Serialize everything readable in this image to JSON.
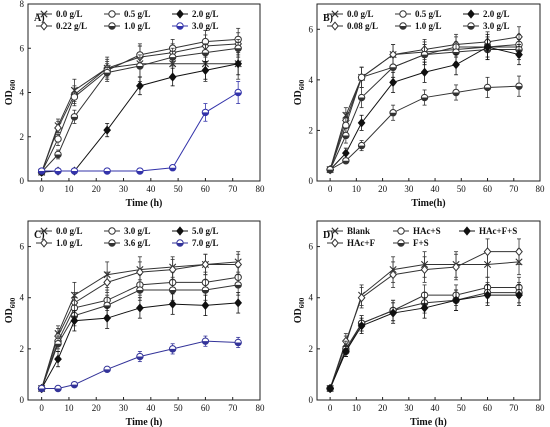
{
  "figure": {
    "background": "#ffffff"
  },
  "chart_data": [
    {
      "type": "line",
      "panel_label": "A)",
      "xlabel": "Time (h)",
      "ylabel": "OD",
      "ylabel_sub": "600",
      "xlim": [
        -5,
        80
      ],
      "ylim": [
        0,
        8
      ],
      "xticks": [
        "0",
        "10",
        "20",
        "30",
        "40",
        "50",
        "60",
        "70",
        "80"
      ],
      "yticks": [
        "0",
        "2",
        "4",
        "6",
        "8"
      ],
      "legend_position": "top-left",
      "series": [
        {
          "name": "0.0  g/L",
          "marker": "x",
          "color": "#333333",
          "x": [
            0,
            6,
            12,
            24,
            36,
            48,
            60,
            72
          ],
          "y": [
            0.4,
            2.5,
            4.1,
            5.1,
            5.3,
            5.3,
            5.3,
            5.3
          ],
          "err": [
            0.1,
            0.3,
            0.5,
            0.5,
            0.8,
            0.7,
            0.8,
            0.7
          ]
        },
        {
          "name": "0.22 g/L",
          "marker": "diamond-open",
          "color": "#333333",
          "x": [
            0,
            6,
            12,
            24,
            36,
            48,
            60,
            72
          ],
          "y": [
            0.4,
            2.4,
            3.9,
            5.1,
            5.6,
            5.8,
            6.1,
            6.2
          ],
          "err": [
            0.1,
            0.3,
            0.4,
            0.4,
            0.5,
            0.4,
            0.5,
            0.5
          ]
        },
        {
          "name": "0.5 g/L",
          "marker": "circle-open",
          "color": "#333333",
          "x": [
            0,
            6,
            12,
            24,
            36,
            48,
            60,
            72
          ],
          "y": [
            0.4,
            1.9,
            3.8,
            5.0,
            5.7,
            6.0,
            6.3,
            6.4
          ],
          "err": [
            0.1,
            0.3,
            0.4,
            0.4,
            0.5,
            0.4,
            0.5,
            0.5
          ]
        },
        {
          "name": "1.0 g/L",
          "marker": "circle-half",
          "color": "#333333",
          "x": [
            0,
            6,
            12,
            24,
            36,
            48,
            60,
            72
          ],
          "y": [
            0.4,
            1.2,
            2.9,
            4.9,
            5.2,
            5.6,
            5.8,
            6.0
          ],
          "err": [
            0.1,
            0.2,
            0.3,
            0.4,
            0.5,
            0.4,
            0.4,
            0.4
          ]
        },
        {
          "name": "2.0 g/L",
          "marker": "diamond-filled",
          "color": "#111111",
          "x": [
            0,
            6,
            12,
            24,
            36,
            48,
            60,
            72
          ],
          "y": [
            0.4,
            0.45,
            0.45,
            2.3,
            4.3,
            4.7,
            5.0,
            5.3
          ],
          "err": [
            0.05,
            0.05,
            0.05,
            0.3,
            0.4,
            0.4,
            0.4,
            0.5
          ]
        },
        {
          "name": "3.0 g/L",
          "marker": "circle-half",
          "color": "#3333aa",
          "x": [
            0,
            6,
            12,
            24,
            36,
            48,
            60,
            72
          ],
          "y": [
            0.45,
            0.45,
            0.45,
            0.45,
            0.45,
            0.6,
            3.1,
            4.0
          ],
          "err": [
            0.05,
            0.05,
            0.05,
            0.05,
            0.05,
            0.05,
            0.4,
            0.5
          ]
        }
      ]
    },
    {
      "type": "line",
      "panel_label": "B)",
      "xlabel": "Time(h)",
      "ylabel": "OD",
      "ylabel_sub": "600",
      "xlim": [
        -5,
        80
      ],
      "ylim": [
        0,
        7
      ],
      "xticks": [
        "0",
        "10",
        "20",
        "30",
        "40",
        "50",
        "60",
        "70",
        "80"
      ],
      "yticks": [
        "0",
        "2",
        "4",
        "6"
      ],
      "legend_position": "top-left",
      "series": [
        {
          "name": "0.0 g/L",
          "marker": "x",
          "color": "#333333",
          "x": [
            0,
            6,
            12,
            24,
            36,
            48,
            60,
            72
          ],
          "y": [
            0.45,
            2.6,
            4.1,
            5.0,
            5.1,
            5.2,
            5.3,
            5.3
          ],
          "err": [
            0.1,
            0.3,
            0.4,
            0.4,
            0.4,
            0.3,
            0.4,
            0.4
          ]
        },
        {
          "name": "0.08 g/L",
          "marker": "diamond-open",
          "color": "#333333",
          "x": [
            0,
            6,
            12,
            24,
            36,
            48,
            60,
            72
          ],
          "y": [
            0.45,
            2.4,
            4.1,
            5.0,
            5.2,
            5.4,
            5.5,
            5.7
          ],
          "err": [
            0.1,
            0.3,
            0.4,
            0.4,
            0.4,
            0.4,
            0.4,
            0.4
          ]
        },
        {
          "name": "0.5 g/L",
          "marker": "circle-open",
          "color": "#333333",
          "x": [
            0,
            6,
            12,
            24,
            36,
            48,
            60,
            72
          ],
          "y": [
            0.45,
            2.2,
            4.1,
            4.5,
            5.0,
            5.3,
            5.3,
            5.4
          ],
          "err": [
            0.1,
            0.3,
            0.4,
            0.4,
            0.4,
            0.4,
            0.4,
            0.4
          ]
        },
        {
          "name": "1.0 g/L",
          "marker": "circle-half",
          "color": "#333333",
          "x": [
            0,
            6,
            12,
            24,
            36,
            48,
            60,
            72
          ],
          "y": [
            0.45,
            1.8,
            3.3,
            4.5,
            5.0,
            5.1,
            5.2,
            5.2
          ],
          "err": [
            0.1,
            0.3,
            0.4,
            0.4,
            0.4,
            0.4,
            0.4,
            0.4
          ]
        },
        {
          "name": "2.0 g/L",
          "marker": "diamond-filled",
          "color": "#111111",
          "x": [
            0,
            6,
            12,
            24,
            36,
            48,
            60,
            72
          ],
          "y": [
            0.45,
            1.1,
            2.3,
            3.9,
            4.3,
            4.6,
            5.3,
            5.0
          ],
          "err": [
            0.1,
            0.2,
            0.3,
            0.4,
            0.4,
            0.4,
            0.5,
            0.4
          ]
        },
        {
          "name": "3.0 g/L",
          "marker": "circle-half",
          "color": "#333333",
          "x": [
            0,
            6,
            12,
            24,
            36,
            48,
            60,
            72
          ],
          "y": [
            0.45,
            0.8,
            1.4,
            2.7,
            3.3,
            3.5,
            3.7,
            3.75
          ],
          "err": [
            0.1,
            0.1,
            0.2,
            0.3,
            0.3,
            0.3,
            0.4,
            0.4
          ]
        }
      ]
    },
    {
      "type": "line",
      "panel_label": "C)",
      "xlabel": "Time (h)",
      "ylabel": "OD",
      "ylabel_sub": "600",
      "xlim": [
        -5,
        80
      ],
      "ylim": [
        0,
        7
      ],
      "xticks": [
        "0",
        "10",
        "20",
        "30",
        "40",
        "50",
        "60",
        "70",
        "80"
      ],
      "yticks": [
        "0",
        "2",
        "4",
        "6"
      ],
      "legend_position": "top-left",
      "series": [
        {
          "name": "0.0  g/L",
          "marker": "x",
          "color": "#333333",
          "x": [
            0,
            6,
            12,
            24,
            36,
            48,
            60,
            72
          ],
          "y": [
            0.45,
            2.6,
            4.1,
            4.9,
            5.1,
            5.2,
            5.3,
            5.4
          ],
          "err": [
            0.1,
            0.3,
            0.5,
            0.5,
            0.5,
            0.4,
            0.4,
            0.4
          ]
        },
        {
          "name": "1.0 g/L",
          "marker": "diamond-open",
          "color": "#333333",
          "x": [
            0,
            6,
            12,
            24,
            36,
            48,
            60,
            72
          ],
          "y": [
            0.45,
            2.5,
            3.8,
            4.6,
            5.0,
            5.1,
            5.3,
            5.3
          ],
          "err": [
            0.1,
            0.3,
            0.4,
            0.4,
            0.4,
            0.4,
            0.4,
            0.4
          ]
        },
        {
          "name": "3.0 g/L",
          "marker": "circle-open",
          "color": "#333333",
          "x": [
            0,
            6,
            12,
            24,
            36,
            48,
            60,
            72
          ],
          "y": [
            0.45,
            2.3,
            3.6,
            3.9,
            4.5,
            4.6,
            4.6,
            4.8
          ],
          "err": [
            0.1,
            0.3,
            0.4,
            0.4,
            0.4,
            0.4,
            0.4,
            0.4
          ]
        },
        {
          "name": "3.6 g/L",
          "marker": "circle-half",
          "color": "#333333",
          "x": [
            0,
            6,
            12,
            24,
            36,
            48,
            60,
            72
          ],
          "y": [
            0.45,
            2.2,
            3.3,
            3.7,
            4.3,
            4.3,
            4.3,
            4.5
          ],
          "err": [
            0.1,
            0.3,
            0.4,
            0.4,
            0.4,
            0.4,
            0.4,
            0.4
          ]
        },
        {
          "name": "5.0 g/L",
          "marker": "diamond-filled",
          "color": "#111111",
          "x": [
            0,
            6,
            12,
            24,
            36,
            48,
            60,
            72
          ],
          "y": [
            0.45,
            1.6,
            3.1,
            3.2,
            3.6,
            3.75,
            3.7,
            3.8
          ],
          "err": [
            0.1,
            0.3,
            0.4,
            0.4,
            0.4,
            0.4,
            0.4,
            0.4
          ]
        },
        {
          "name": "7.0 g/L",
          "marker": "circle-half",
          "color": "#333399",
          "x": [
            0,
            6,
            12,
            24,
            36,
            48,
            60,
            72
          ],
          "y": [
            0.45,
            0.45,
            0.6,
            1.2,
            1.7,
            2.0,
            2.3,
            2.25
          ],
          "err": [
            0.05,
            0.05,
            0.1,
            0.1,
            0.2,
            0.2,
            0.2,
            0.2
          ]
        }
      ]
    },
    {
      "type": "line",
      "panel_label": "D)",
      "xlabel": "Time (h)",
      "ylabel": "OD",
      "ylabel_sub": "600",
      "xlim": [
        -5,
        80
      ],
      "ylim": [
        0,
        7
      ],
      "xticks": [
        "0",
        "10",
        "20",
        "30",
        "40",
        "50",
        "60",
        "70",
        "80"
      ],
      "yticks": [
        "0",
        "2",
        "4",
        "6"
      ],
      "legend_position": "top-left",
      "series": [
        {
          "name": "Blank",
          "marker": "x",
          "color": "#333333",
          "x": [
            0,
            6,
            12,
            24,
            36,
            48,
            60,
            72
          ],
          "y": [
            0.45,
            2.2,
            4.1,
            5.1,
            5.3,
            5.3,
            5.3,
            5.4
          ],
          "err": [
            0.1,
            0.3,
            0.4,
            0.5,
            0.5,
            0.5,
            0.5,
            0.5
          ]
        },
        {
          "name": "HAc+F",
          "marker": "diamond-open",
          "color": "#333333",
          "x": [
            0,
            6,
            12,
            24,
            36,
            48,
            60,
            72
          ],
          "y": [
            0.45,
            2.3,
            4.0,
            4.9,
            5.1,
            5.2,
            5.8,
            5.8
          ],
          "err": [
            0.1,
            0.3,
            0.4,
            0.5,
            0.5,
            0.5,
            0.5,
            0.5
          ]
        },
        {
          "name": "HAc+S",
          "marker": "circle-open",
          "color": "#333333",
          "x": [
            0,
            6,
            12,
            24,
            36,
            48,
            60,
            72
          ],
          "y": [
            0.45,
            2.0,
            3.0,
            3.5,
            4.1,
            4.1,
            4.4,
            4.4
          ],
          "err": [
            0.1,
            0.3,
            0.3,
            0.4,
            0.4,
            0.4,
            0.4,
            0.4
          ]
        },
        {
          "name": "F+S",
          "marker": "circle-half",
          "color": "#333333",
          "x": [
            0,
            6,
            12,
            24,
            36,
            48,
            60,
            72
          ],
          "y": [
            0.45,
            1.9,
            3.0,
            3.5,
            3.8,
            3.9,
            4.2,
            4.2
          ],
          "err": [
            0.1,
            0.2,
            0.3,
            0.4,
            0.4,
            0.4,
            0.4,
            0.4
          ]
        },
        {
          "name": "HAc+F+S",
          "marker": "diamond-filled",
          "color": "#111111",
          "x": [
            0,
            6,
            12,
            24,
            36,
            48,
            60,
            72
          ],
          "y": [
            0.45,
            1.9,
            2.9,
            3.4,
            3.6,
            3.9,
            4.1,
            4.1
          ],
          "err": [
            0.1,
            0.2,
            0.3,
            0.4,
            0.4,
            0.4,
            0.4,
            0.4
          ]
        }
      ]
    }
  ]
}
